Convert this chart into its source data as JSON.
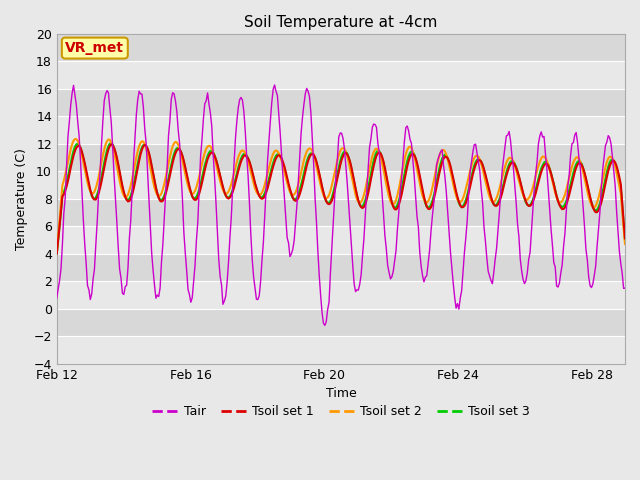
{
  "title": "Soil Temperature at -4cm",
  "xlabel": "Time",
  "ylabel": "Temperature (C)",
  "ylim": [
    -4,
    20
  ],
  "yticks": [
    -4,
    -2,
    0,
    2,
    4,
    6,
    8,
    10,
    12,
    14,
    16,
    18,
    20
  ],
  "xtick_labels": [
    "Feb 12",
    "Feb 16",
    "Feb 20",
    "Feb 24",
    "Feb 28"
  ],
  "xtick_positions": [
    0,
    4,
    8,
    12,
    16
  ],
  "xlim": [
    0,
    17
  ],
  "bg_color": "#e8e8e8",
  "plot_bg_color": "#d8d8d8",
  "stripe_color_light": "#e8e8e8",
  "stripe_color_dark": "#d8d8d8",
  "grid_color": "#ffffff",
  "line_colors": {
    "Tair": "#cc00cc",
    "Tsoil set 1": "#dd0000",
    "Tsoil set 2": "#ff9900",
    "Tsoil set 3": "#00cc00"
  },
  "line_widths": {
    "Tair": 1.0,
    "Tsoil set 1": 1.5,
    "Tsoil set 2": 1.5,
    "Tsoil set 3": 1.5
  },
  "annotation_text": "VR_met",
  "annotation_color": "#cc0000",
  "annotation_bg": "#ffffaa",
  "annotation_border": "#cc9900",
  "title_fontsize": 11,
  "axis_fontsize": 9,
  "tick_fontsize": 9,
  "legend_fontsize": 9
}
